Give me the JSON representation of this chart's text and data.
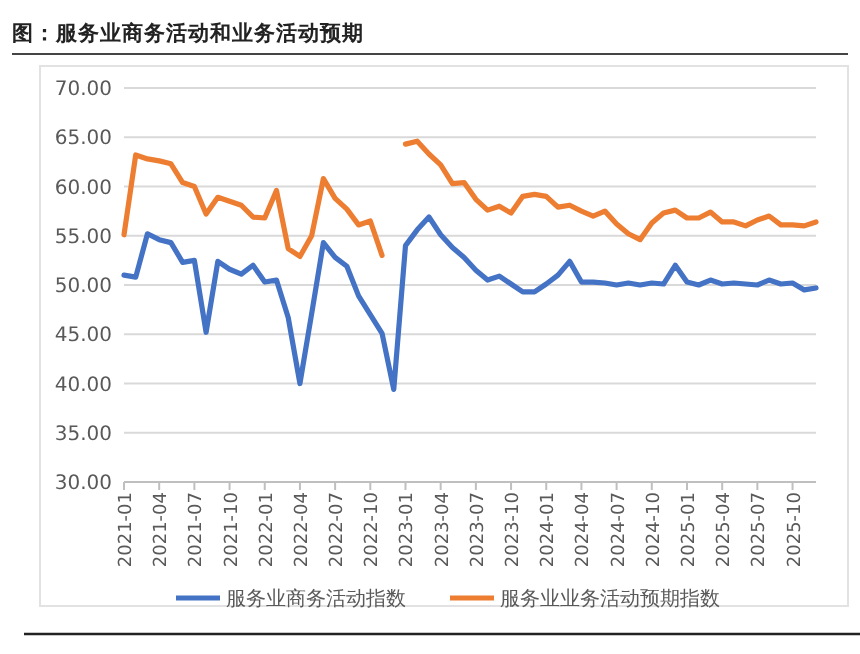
{
  "chart_data": {
    "type": "line",
    "title": "图：服务业商务活动和业务活动预期",
    "categories": [
      "2021-01",
      null,
      null,
      "2021-04",
      null,
      null,
      "2021-07",
      null,
      null,
      "2021-10",
      null,
      null,
      "2022-01",
      null,
      null,
      "2022-04",
      null,
      null,
      "2022-07",
      null,
      null,
      "2022-10",
      null,
      null,
      "2023-01",
      null,
      null,
      "2023-04",
      null,
      null,
      "2023-07",
      null,
      null,
      "2023-10",
      null,
      null,
      "2024-01",
      null,
      null,
      "2024-04",
      null,
      null,
      "2024-07",
      null,
      null,
      "2024-10",
      null,
      null,
      "2025-01",
      null,
      null,
      "2025-04",
      null,
      null,
      "2025-07",
      null,
      null,
      "2025-10",
      null,
      null
    ],
    "series": [
      {
        "name": "服务业商务活动指数",
        "color": "#4472c4",
        "values": [
          51.0,
          50.8,
          55.2,
          54.6,
          54.3,
          52.3,
          52.5,
          45.2,
          52.4,
          51.6,
          51.1,
          52.0,
          50.3,
          50.5,
          46.7,
          40.0,
          47.1,
          54.3,
          52.8,
          51.9,
          48.9,
          47.0,
          45.1,
          39.4,
          54.0,
          55.6,
          56.9,
          55.1,
          53.8,
          52.8,
          51.5,
          50.5,
          50.9,
          50.1,
          49.3,
          49.3,
          50.1,
          51.0,
          52.4,
          50.3,
          50.3,
          50.2,
          50.0,
          50.2,
          50.0,
          50.2,
          50.1,
          52.0,
          50.3,
          50.0,
          50.5,
          50.1,
          50.2,
          50.1,
          50.0,
          50.5,
          50.1,
          50.2,
          49.5,
          49.7
        ]
      },
      {
        "name": "服务业业务活动预期指数",
        "color": "#ed7d31",
        "values": [
          55.1,
          63.2,
          62.8,
          62.6,
          62.3,
          60.4,
          60.0,
          57.2,
          58.9,
          58.5,
          58.1,
          56.9,
          56.8,
          59.6,
          53.7,
          52.9,
          55.0,
          60.8,
          58.8,
          57.7,
          56.1,
          56.5,
          53.0,
          null,
          64.3,
          64.6,
          63.3,
          62.2,
          60.3,
          60.4,
          58.7,
          57.6,
          58.0,
          57.3,
          59.0,
          59.2,
          59.0,
          57.9,
          58.1,
          57.5,
          57.0,
          57.5,
          56.2,
          55.2,
          54.6,
          56.3,
          57.3,
          57.6,
          56.8,
          56.8,
          57.4,
          56.4,
          56.4,
          56.0,
          56.6,
          57.0,
          56.1,
          56.1,
          56.0,
          56.4
        ]
      }
    ],
    "ylim": [
      30,
      70
    ],
    "yticks": [
      {
        "value": 30,
        "label": "30.00"
      },
      {
        "value": 35,
        "label": "35.00"
      },
      {
        "value": 40,
        "label": "40.00"
      },
      {
        "value": 45,
        "label": "45.00"
      },
      {
        "value": 50,
        "label": "50.00"
      },
      {
        "value": 55,
        "label": "55.00"
      },
      {
        "value": 60,
        "label": "60.00"
      },
      {
        "value": 65,
        "label": "65.00"
      },
      {
        "value": 70,
        "label": "70.00"
      }
    ],
    "grid": "y",
    "legend": "bottom",
    "marker": "none",
    "line_style": "solid"
  }
}
